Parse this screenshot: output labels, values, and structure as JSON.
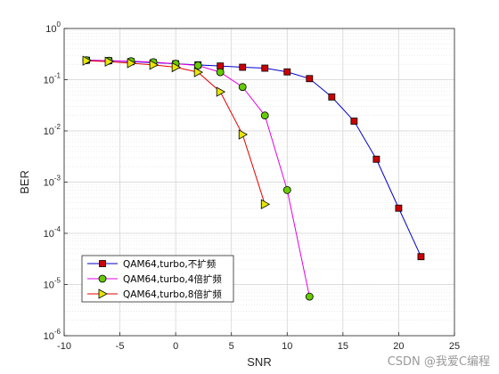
{
  "watermark": "CSDN @我爱C编程",
  "chart_data": {
    "type": "line",
    "xlabel": "SNR",
    "ylabel": "BER",
    "xlim": [
      -10,
      25
    ],
    "ylim_log10": [
      -6,
      0
    ],
    "yscale": "log",
    "grid": "on (major and minor)",
    "legend_position": "bottom-left",
    "x_ticks": [
      "-10",
      "-5",
      "0",
      "5",
      "10",
      "15",
      "20",
      "25"
    ],
    "y_ticks": [
      {
        "base": "10",
        "exp": "0"
      },
      {
        "base": "10",
        "exp": "-1"
      },
      {
        "base": "10",
        "exp": "-2"
      },
      {
        "base": "10",
        "exp": "-3"
      },
      {
        "base": "10",
        "exp": "-4"
      },
      {
        "base": "10",
        "exp": "-5"
      },
      {
        "base": "10",
        "exp": "-6"
      }
    ],
    "series": [
      {
        "name": "QAM64,turbo,不扩频",
        "color": "#0000cc",
        "marker": "square",
        "marker_fill": "#cc0000",
        "x": [
          -8,
          -6,
          -4,
          -2,
          0,
          2,
          4,
          6,
          8,
          10,
          12,
          14,
          16,
          18,
          20,
          22
        ],
        "y": [
          0.24,
          0.235,
          0.225,
          0.215,
          0.205,
          0.195,
          0.185,
          0.175,
          0.168,
          0.142,
          0.105,
          0.046,
          0.0155,
          0.0028,
          0.00031,
          3.5e-05
        ]
      },
      {
        "name": "QAM64,turbo,4倍扩频",
        "color": "#e600e6",
        "marker": "circle",
        "marker_fill": "#66cc00",
        "x": [
          -8,
          -6,
          -4,
          -2,
          0,
          2,
          4,
          6,
          8,
          10,
          12
        ],
        "y": [
          0.24,
          0.235,
          0.23,
          0.22,
          0.205,
          0.19,
          0.14,
          0.072,
          0.02,
          0.0007,
          5.8e-06
        ]
      },
      {
        "name": "QAM64,turbo,8倍扩频",
        "color": "#e60000",
        "marker": "triangle-right",
        "marker_fill": "#e6e600",
        "x": [
          -8,
          -6,
          -4,
          -2,
          0,
          2,
          4,
          6,
          8
        ],
        "y": [
          0.235,
          0.225,
          0.21,
          0.195,
          0.175,
          0.14,
          0.058,
          0.0085,
          0.00037
        ]
      }
    ]
  }
}
